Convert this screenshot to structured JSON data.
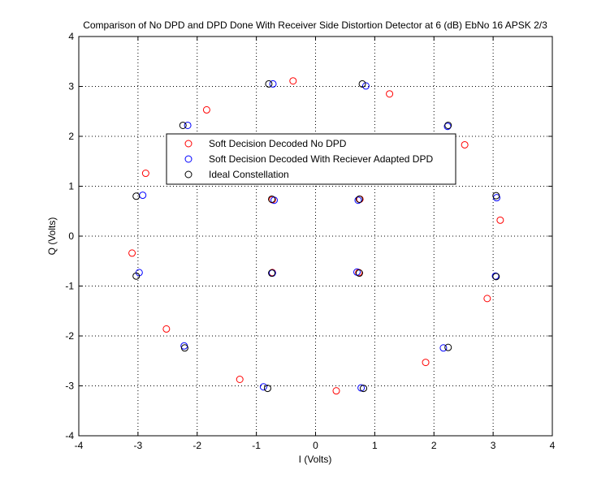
{
  "chart_data": {
    "type": "scatter",
    "title": "Comparison of No DPD and DPD Done With Receiver Side Distortion Detector at 6 (dB) EbNo 16 APSK 2/3",
    "xlabel": "I (Volts)",
    "ylabel": "Q (Volts)",
    "xlim": [
      -4,
      4
    ],
    "ylim": [
      -4,
      4
    ],
    "xticks": [
      -4,
      -3,
      -2,
      -1,
      0,
      1,
      2,
      3,
      4
    ],
    "yticks": [
      -4,
      -3,
      -2,
      -1,
      0,
      1,
      2,
      3,
      4
    ],
    "grid": true,
    "grid_style": "dotted",
    "legend_position": "upper-center-inside",
    "series": [
      {
        "name": "Soft Decision Decoded No DPD",
        "color": "#ff0000",
        "marker": "circle-open",
        "points": [
          [
            -0.38,
            3.11
          ],
          [
            1.25,
            2.85
          ],
          [
            2.52,
            1.83
          ],
          [
            3.12,
            0.32
          ],
          [
            2.9,
            -1.25
          ],
          [
            1.86,
            -2.53
          ],
          [
            0.35,
            -3.1
          ],
          [
            -1.28,
            -2.87
          ],
          [
            -2.52,
            -1.86
          ],
          [
            -3.1,
            -0.34
          ],
          [
            -2.87,
            1.26
          ],
          [
            -1.84,
            2.53
          ],
          [
            0.75,
            0.74
          ],
          [
            -0.73,
            0.73
          ],
          [
            -0.73,
            -0.73
          ],
          [
            0.73,
            -0.73
          ]
        ]
      },
      {
        "name": "Soft Decision Decoded With Reciever Adapted DPD",
        "color": "#0000ff",
        "marker": "circle-open",
        "points": [
          [
            -0.72,
            3.05
          ],
          [
            0.85,
            3.01
          ],
          [
            2.23,
            2.2
          ],
          [
            3.06,
            0.77
          ],
          [
            3.04,
            -0.8
          ],
          [
            2.16,
            -2.24
          ],
          [
            0.77,
            -3.04
          ],
          [
            -0.88,
            -3.02
          ],
          [
            -2.22,
            -2.2
          ],
          [
            -2.98,
            -0.73
          ],
          [
            -2.92,
            0.82
          ],
          [
            -2.16,
            2.22
          ],
          [
            0.72,
            0.72
          ],
          [
            -0.7,
            0.72
          ],
          [
            -0.73,
            -0.74
          ],
          [
            0.7,
            -0.72
          ]
        ]
      },
      {
        "name": "Ideal Constellation",
        "color": "#000000",
        "marker": "circle-open",
        "points": [
          [
            -0.79,
            3.05
          ],
          [
            0.79,
            3.05
          ],
          [
            2.24,
            2.22
          ],
          [
            3.05,
            0.81
          ],
          [
            3.05,
            -0.81
          ],
          [
            2.24,
            -2.23
          ],
          [
            0.81,
            -3.05
          ],
          [
            -0.81,
            -3.05
          ],
          [
            -2.21,
            -2.24
          ],
          [
            -3.03,
            -0.8
          ],
          [
            -3.03,
            0.8
          ],
          [
            -2.24,
            2.22
          ],
          [
            0.74,
            0.74
          ],
          [
            -0.74,
            0.74
          ],
          [
            -0.74,
            -0.74
          ],
          [
            0.74,
            -0.74
          ]
        ]
      }
    ]
  }
}
